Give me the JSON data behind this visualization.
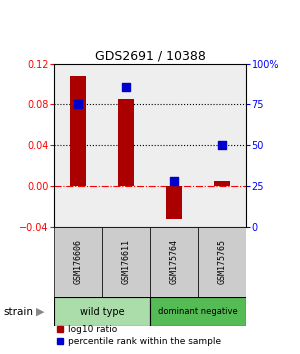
{
  "title": "GDS2691 / 10388",
  "samples": [
    "GSM176606",
    "GSM176611",
    "GSM175764",
    "GSM175765"
  ],
  "log10_ratio": [
    0.108,
    0.085,
    -0.033,
    0.005
  ],
  "percentile_rank": [
    75,
    86,
    28,
    50
  ],
  "groups": [
    {
      "label": "wild type",
      "samples": [
        0,
        1
      ],
      "color": "#aaddaa"
    },
    {
      "label": "dominant negative",
      "samples": [
        2,
        3
      ],
      "color": "#55bb55"
    }
  ],
  "bar_color": "#aa0000",
  "dot_color": "#0000cc",
  "ylim_left": [
    -0.04,
    0.12
  ],
  "ylim_right": [
    0,
    100
  ],
  "yticks_left": [
    -0.04,
    0,
    0.04,
    0.08,
    0.12
  ],
  "yticks_right": [
    0,
    25,
    50,
    75,
    100
  ],
  "hlines": [
    0.08,
    0.04
  ],
  "background_color": "#ffffff",
  "legend_label_red": "log10 ratio",
  "legend_label_blue": "percentile rank within the sample",
  "strain_label": "strain",
  "bar_width": 0.35,
  "dot_size": 28,
  "sample_box_color": "#cccccc",
  "gray_bg": "#eeeeee"
}
